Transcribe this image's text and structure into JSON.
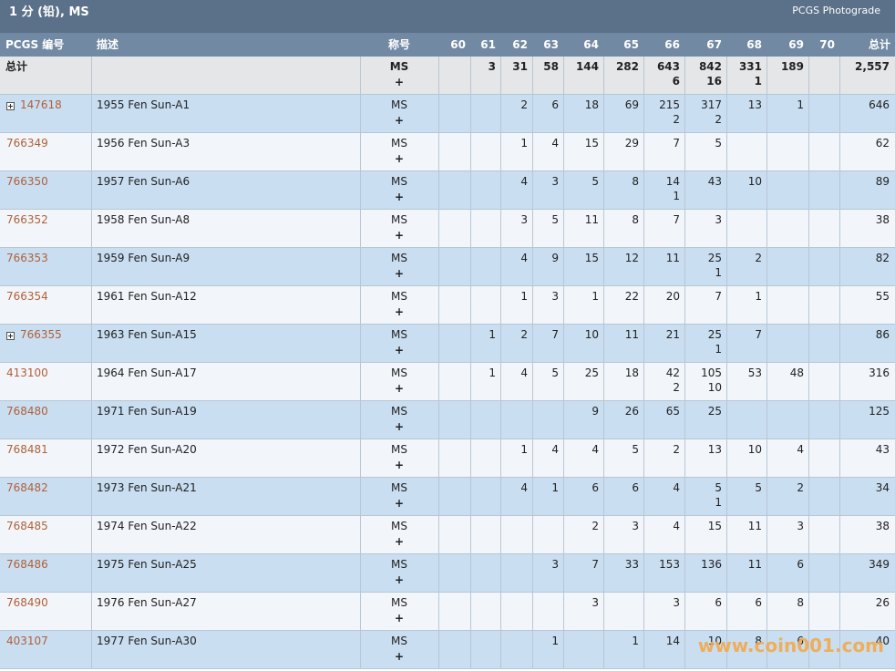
{
  "header": {
    "title": "1 分 (铅), MS",
    "link": "PCGS Photograde"
  },
  "columns": [
    "PCGS 编号",
    "描述",
    "称号",
    "60",
    "61",
    "62",
    "63",
    "64",
    "65",
    "66",
    "67",
    "68",
    "69",
    "70",
    "总计"
  ],
  "totals": {
    "label": "总计",
    "designation": "MS",
    "plus": "+",
    "grades": [
      null,
      3,
      31,
      58,
      144,
      282,
      [
        643,
        6
      ],
      [
        842,
        16
      ],
      [
        331,
        1
      ],
      189,
      null
    ],
    "total": "2,557"
  },
  "rows": [
    {
      "id": "147618",
      "expandable": true,
      "desc": "1955 Fen Sun-A1",
      "designation": "MS",
      "plus": "+",
      "grades": [
        null,
        null,
        2,
        6,
        18,
        69,
        [
          215,
          2
        ],
        [
          317,
          2
        ],
        13,
        1,
        null
      ],
      "total": 646
    },
    {
      "id": "766349",
      "expandable": false,
      "desc": "1956 Fen Sun-A3",
      "designation": "MS",
      "plus": "+",
      "grades": [
        null,
        null,
        1,
        4,
        15,
        29,
        7,
        5,
        null,
        null,
        null
      ],
      "total": 62
    },
    {
      "id": "766350",
      "expandable": false,
      "desc": "1957 Fen Sun-A6",
      "designation": "MS",
      "plus": "+",
      "grades": [
        null,
        null,
        4,
        3,
        5,
        8,
        [
          14,
          1
        ],
        43,
        10,
        null,
        null
      ],
      "total": 89
    },
    {
      "id": "766352",
      "expandable": false,
      "desc": "1958 Fen Sun-A8",
      "designation": "MS",
      "plus": "+",
      "grades": [
        null,
        null,
        3,
        5,
        11,
        8,
        7,
        3,
        null,
        null,
        null
      ],
      "total": 38
    },
    {
      "id": "766353",
      "expandable": false,
      "desc": "1959 Fen Sun-A9",
      "designation": "MS",
      "plus": "+",
      "grades": [
        null,
        null,
        4,
        9,
        15,
        12,
        11,
        [
          25,
          1
        ],
        2,
        null,
        null
      ],
      "total": 82
    },
    {
      "id": "766354",
      "expandable": false,
      "desc": "1961 Fen Sun-A12",
      "designation": "MS",
      "plus": "+",
      "grades": [
        null,
        null,
        1,
        3,
        1,
        22,
        20,
        7,
        1,
        null,
        null
      ],
      "total": 55
    },
    {
      "id": "766355",
      "expandable": true,
      "desc": "1963 Fen Sun-A15",
      "designation": "MS",
      "plus": "+",
      "grades": [
        null,
        1,
        2,
        7,
        10,
        11,
        21,
        [
          25,
          1
        ],
        7,
        null,
        null
      ],
      "total": 86
    },
    {
      "id": "413100",
      "expandable": false,
      "desc": "1964 Fen Sun-A17",
      "designation": "MS",
      "plus": "+",
      "grades": [
        null,
        1,
        4,
        5,
        25,
        18,
        [
          42,
          2
        ],
        [
          105,
          10
        ],
        53,
        48,
        null
      ],
      "total": 316
    },
    {
      "id": "768480",
      "expandable": false,
      "desc": "1971 Fen Sun-A19",
      "designation": "MS",
      "plus": "+",
      "grades": [
        null,
        null,
        null,
        null,
        9,
        26,
        65,
        25,
        null,
        null,
        null
      ],
      "total": 125
    },
    {
      "id": "768481",
      "expandable": false,
      "desc": "1972 Fen Sun-A20",
      "designation": "MS",
      "plus": "+",
      "grades": [
        null,
        null,
        1,
        4,
        4,
        5,
        2,
        13,
        10,
        4,
        null
      ],
      "total": 43
    },
    {
      "id": "768482",
      "expandable": false,
      "desc": "1973 Fen Sun-A21",
      "designation": "MS",
      "plus": "+",
      "grades": [
        null,
        null,
        4,
        1,
        6,
        6,
        4,
        [
          5,
          1
        ],
        5,
        2,
        null
      ],
      "total": 34
    },
    {
      "id": "768485",
      "expandable": false,
      "desc": "1974 Fen Sun-A22",
      "designation": "MS",
      "plus": "+",
      "grades": [
        null,
        null,
        null,
        null,
        2,
        3,
        4,
        15,
        11,
        3,
        null
      ],
      "total": 38
    },
    {
      "id": "768486",
      "expandable": false,
      "desc": "1975 Fen Sun-A25",
      "designation": "MS",
      "plus": "+",
      "grades": [
        null,
        null,
        null,
        3,
        7,
        33,
        153,
        136,
        11,
        6,
        null
      ],
      "total": 349
    },
    {
      "id": "768490",
      "expandable": false,
      "desc": "1976 Fen Sun-A27",
      "designation": "MS",
      "plus": "+",
      "grades": [
        null,
        null,
        null,
        null,
        3,
        null,
        3,
        6,
        6,
        8,
        null
      ],
      "total": 26
    },
    {
      "id": "403107",
      "expandable": false,
      "desc": "1977 Fen Sun-A30",
      "designation": "MS",
      "plus": "+",
      "grades": [
        null,
        null,
        null,
        1,
        null,
        1,
        14,
        10,
        8,
        6,
        null
      ],
      "total": 40
    }
  ],
  "watermark": "www.coin001.com"
}
